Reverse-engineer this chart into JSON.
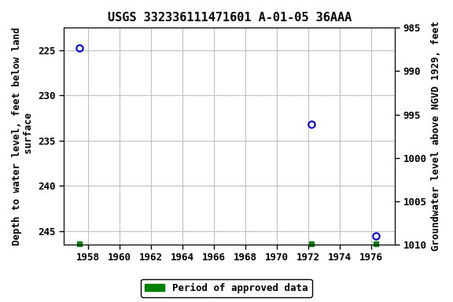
{
  "title": "USGS 332336111471601 A-01-05 36AAA",
  "ylabel_left": "Depth to water level, feet below land\n surface",
  "ylabel_right": "Groundwater level above NGVD 1929, feet",
  "data_points": [
    {
      "year": 1957.5,
      "depth": 224.7
    },
    {
      "year": 1972.2,
      "depth": 233.2
    },
    {
      "year": 1976.3,
      "depth": 245.5
    }
  ],
  "approved_markers": [
    {
      "year": 1957.5
    },
    {
      "year": 1972.2
    },
    {
      "year": 1976.3
    }
  ],
  "xlim": [
    1956.5,
    1977.5
  ],
  "ylim_left_top": 222.5,
  "ylim_left_bottom": 246.5,
  "ylim_right_top": 1010,
  "ylim_right_bottom": 985,
  "xticks": [
    1958,
    1960,
    1962,
    1964,
    1966,
    1968,
    1970,
    1972,
    1974,
    1976
  ],
  "yticks_left": [
    225,
    230,
    235,
    240,
    245
  ],
  "yticks_right": [
    1010,
    1005,
    1000,
    995,
    990,
    985
  ],
  "point_color": "#0000cc",
  "approved_color": "#008000",
  "background_color": "#ffffff",
  "grid_color": "#c0c0c0",
  "title_fontsize": 11,
  "axis_label_fontsize": 9,
  "tick_fontsize": 9,
  "legend_fontsize": 9
}
